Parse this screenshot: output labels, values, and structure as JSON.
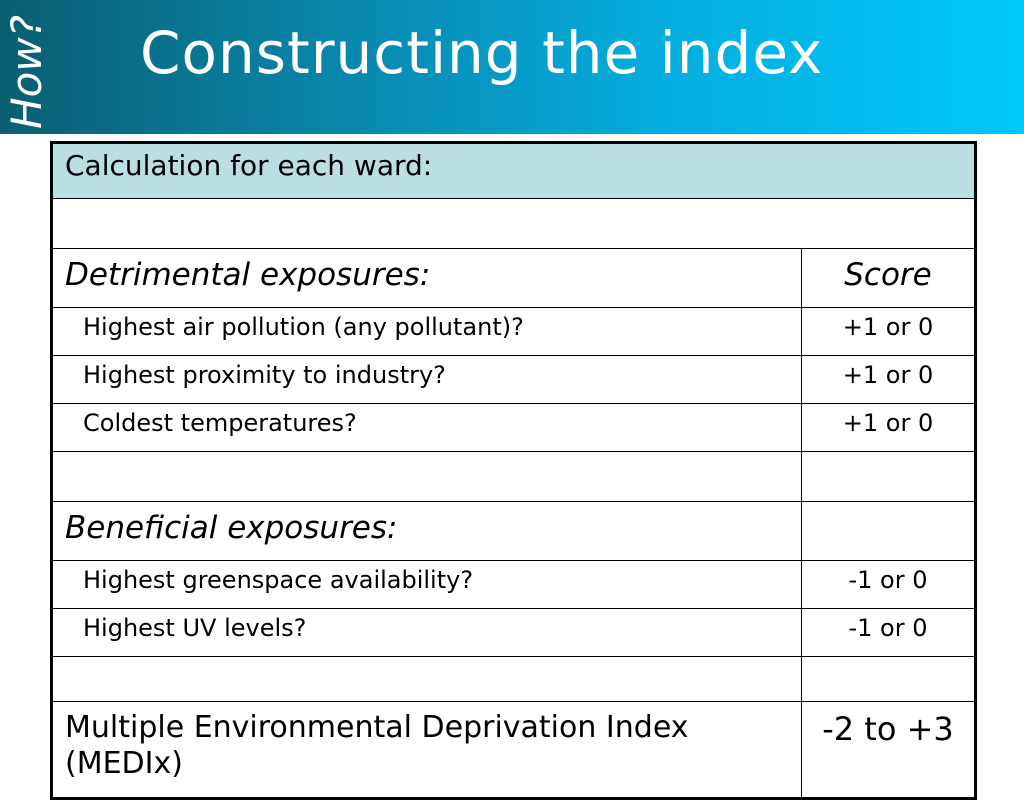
{
  "slide": {
    "side_tag": "How?",
    "title": "Constructing the index"
  },
  "table": {
    "header": "Calculation for each ward:",
    "detrimental": {
      "heading": "Detrimental exposures:",
      "score_heading": "Score",
      "rows": [
        {
          "label": "Highest air pollution (any pollutant)?",
          "score": "+1 or 0"
        },
        {
          "label": "Highest proximity to industry?",
          "score": "+1 or 0"
        },
        {
          "label": "Coldest temperatures?",
          "score": "+1 or 0"
        }
      ]
    },
    "beneficial": {
      "heading": "Beneficial exposures:",
      "rows": [
        {
          "label": "Highest greenspace availability?",
          "score": "-1 or 0"
        },
        {
          "label": "Highest UV levels?",
          "score": "-1 or 0"
        }
      ]
    },
    "total": {
      "label_line1": "Multiple Environmental Deprivation Index",
      "label_line2": "(MEDIx)",
      "score": "-2 to +3"
    }
  }
}
